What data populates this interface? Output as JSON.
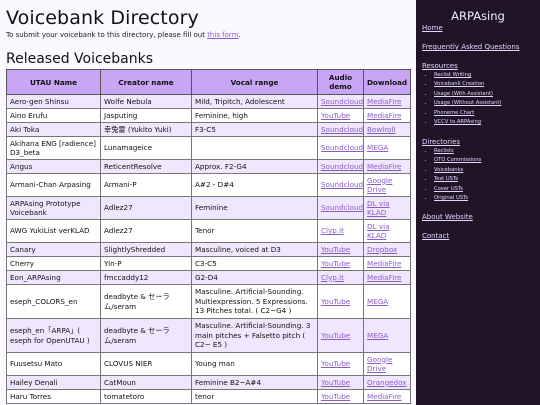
{
  "page": {
    "title": "Voicebank Directory",
    "intro_text": "To submit your voicebank to this directory, please fill out ",
    "intro_link": "this form",
    "intro_end": ".",
    "section_title": "Released Voicebanks"
  },
  "table": {
    "headers": [
      "UTAU Name",
      "Creator name",
      "Vocal range",
      "Audio demo",
      "Download"
    ],
    "rows": [
      {
        "name": "Aero-gen Shinsu",
        "creator": "Wolfe Nebula",
        "range": "Mild, Tripitch, Adolescent",
        "demo": "Soundcloud",
        "download": "MediaFire"
      },
      {
        "name": "Aino Erufu",
        "creator": "Jasputing",
        "range": "Feminine, high",
        "demo": "YouTube",
        "download": "MediaFire"
      },
      {
        "name": "Aki Toka",
        "creator": "幸兔雷 (Yukito Yuki)",
        "range": "F3-C5",
        "demo": "Soundcloud",
        "download": "Bowlroll"
      },
      {
        "name": "Akihana ENG [radience] D3_beta",
        "creator": "Lunamageice",
        "range": "",
        "demo": "Soundcloud",
        "download": "MEGA"
      },
      {
        "name": "Angus",
        "creator": "ReticentResolve",
        "range": "Approx. F2-G4",
        "demo": "Soundcloud",
        "download": "MediaFire"
      },
      {
        "name": "Armani-Chan Arpasing",
        "creator": "Armani-P",
        "range": "A#2 - D#4",
        "demo": "Soundcloud",
        "download": "Google Drive"
      },
      {
        "name": "ARPAsing Prototype Voicebank",
        "creator": "Adlez27",
        "range": "Feminine",
        "demo": "Soundcloud",
        "download": "DL via KLAD"
      },
      {
        "name": "AWG YukiList verKLAD",
        "creator": "Adlez27",
        "range": "Tenor",
        "demo": "Clyp.it",
        "download": "DL via KLAD"
      },
      {
        "name": "Canary",
        "creator": "SlightlyShredded",
        "range": "Masculine, voiced at D3",
        "demo": "YouTube",
        "download": "Dropbox"
      },
      {
        "name": "Cherry",
        "creator": "Yin-P",
        "range": "C3-C5",
        "demo": "YouTube",
        "download": "MediaFire"
      },
      {
        "name": "Eon_ARPAsing",
        "creator": "fmccaddy12",
        "range": "G2-D4",
        "demo": "Clyp.it",
        "download": "MediaFire"
      },
      {
        "name": "eseph_COLORS_en",
        "creator": "deadbyte & セーラ ム/seram",
        "range": "Masculine. Artificial-Sounding. Multiexpression. 5 Expressions. 13 Pitches total. ( C2~G4 )",
        "demo": "YouTube",
        "download": "MEGA"
      },
      {
        "name": "eseph_en「ARPA」( eseph for OpenUTAU )",
        "creator": "deadbyte & セーラ ム/seram",
        "range": "Masculine. Artificial-Sounding. 3 main pitches + Falsetto pitch ( C2~ E5 )",
        "demo": "YouTube",
        "download": "MEGA"
      },
      {
        "name": "Fuusetsu Mato",
        "creator": "CLOVUS NIER",
        "range": "Young man",
        "demo": "YouTube",
        "download": "Google Drive"
      },
      {
        "name": "Hailey Denali",
        "creator": "CatMoun",
        "range": "Feminine B2~A#4",
        "demo": "YouTube",
        "download": "Orangedox"
      },
      {
        "name": "Haru Torres",
        "creator": "tomatetoro",
        "range": "tenor",
        "demo": "YouTube",
        "download": "MediaFire"
      }
    ]
  },
  "sidebar": {
    "brand": "ARPAsing",
    "home": "Home",
    "faq": "Frequently Asked Questions",
    "resources": "Resources",
    "resource_items": [
      "Reclist Writing",
      "Voicebank Creation",
      "Usage (With Assistant)",
      "Usage (Without Assistant)",
      "Phoneme Chart",
      "VCCV to ARPAsing"
    ],
    "directories": "Directories",
    "directory_items": [
      "Reclists",
      "OTO Commissions",
      "Voicebanks",
      "Test USTs",
      "Cover USTs",
      "Original USTs"
    ],
    "about": "About Website",
    "contact": "Contact"
  }
}
